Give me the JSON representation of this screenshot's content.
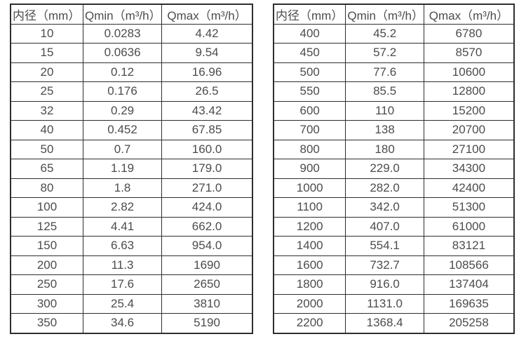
{
  "page": {
    "background": "#ffffff",
    "border_color": "#2e2e2e",
    "text_color": "#4c4c4c"
  },
  "tables": [
    {
      "name": "flow-table-small-diameters",
      "headers": [
        "内径（mm）",
        "Qmin（m³/h）",
        "Qmax（m³/h）"
      ],
      "rows": [
        [
          "10",
          "0.0283",
          "4.42"
        ],
        [
          "15",
          "0.0636",
          "9.54"
        ],
        [
          "20",
          "0.12",
          "16.96"
        ],
        [
          "25",
          "0.176",
          "26.5"
        ],
        [
          "32",
          "0.29",
          "43.42"
        ],
        [
          "40",
          "0.452",
          "67.85"
        ],
        [
          "50",
          "0.7",
          "160.0"
        ],
        [
          "65",
          "1.19",
          "179.0"
        ],
        [
          "80",
          "1.8",
          "271.0"
        ],
        [
          "100",
          "2.82",
          "424.0"
        ],
        [
          "125",
          "4.41",
          "662.0"
        ],
        [
          "150",
          "6.63",
          "954.0"
        ],
        [
          "200",
          "11.3",
          "1690"
        ],
        [
          "250",
          "17.6",
          "2650"
        ],
        [
          "300",
          "25.4",
          "3810"
        ],
        [
          "350",
          "34.6",
          "5190"
        ]
      ]
    },
    {
      "name": "flow-table-large-diameters",
      "headers": [
        "内径（mm）",
        "Qmin（m³/h）",
        "Qmax（m³/h）"
      ],
      "rows": [
        [
          "400",
          "45.2",
          "6780"
        ],
        [
          "450",
          "57.2",
          "8570"
        ],
        [
          "500",
          "77.6",
          "10600"
        ],
        [
          "550",
          "85.5",
          "12800"
        ],
        [
          "600",
          "110",
          "15200"
        ],
        [
          "700",
          "138",
          "20700"
        ],
        [
          "800",
          "180",
          "27100"
        ],
        [
          "900",
          "229.0",
          "34300"
        ],
        [
          "1000",
          "282.0",
          "42400"
        ],
        [
          "1100",
          "342.0",
          "51300"
        ],
        [
          "1200",
          "407.0",
          "61000"
        ],
        [
          "1400",
          "554.1",
          "83121"
        ],
        [
          "1600",
          "732.7",
          "108566"
        ],
        [
          "1800",
          "916.0",
          "137404"
        ],
        [
          "2000",
          "1131.0",
          "169635"
        ],
        [
          "2200",
          "1368.4",
          "205258"
        ]
      ]
    }
  ]
}
